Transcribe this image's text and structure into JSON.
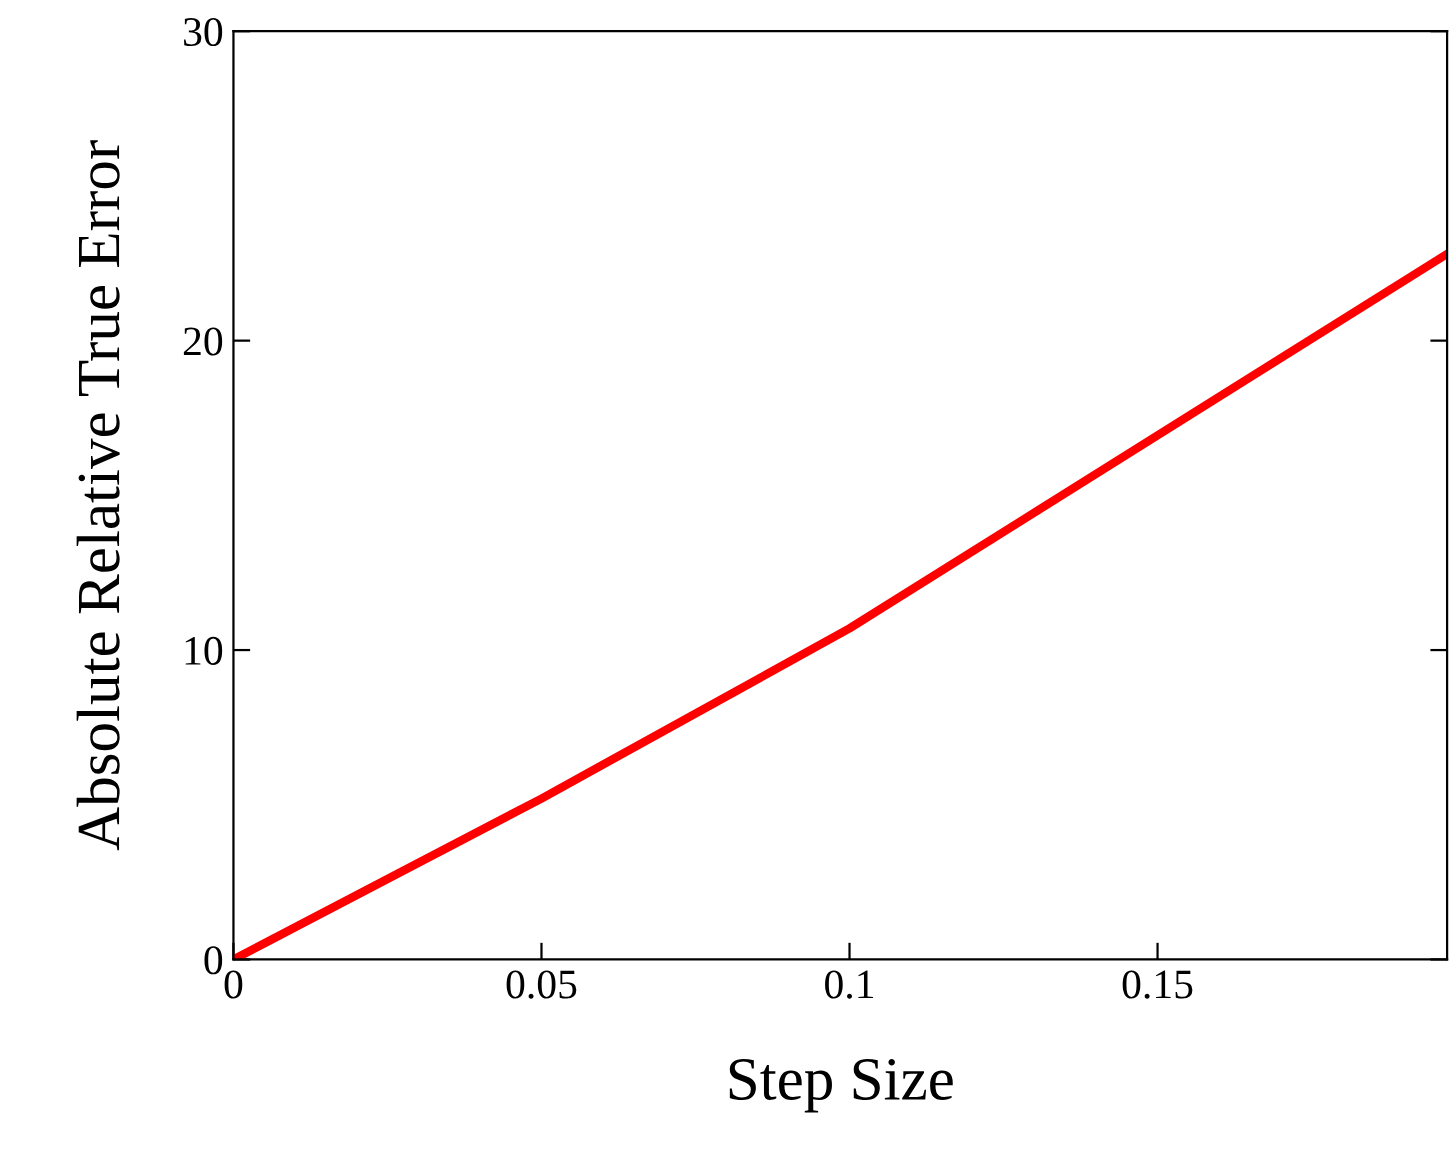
{
  "chart_data": {
    "type": "line",
    "xlabel": "Step Size",
    "ylabel": "Absolute Relative True Error",
    "x": [
      0,
      0.025,
      0.05,
      0.1,
      0.197
    ],
    "series": [
      {
        "color": "#ff0000",
        "values": [
          0,
          2.6,
          5.2,
          10.7,
          22.8
        ]
      }
    ],
    "xlim": [
      0,
      0.197
    ],
    "xticks": [
      0,
      0.05,
      0.1,
      0.15
    ],
    "ylim": [
      0,
      30
    ],
    "yticks": [
      0,
      10,
      20,
      30
    ],
    "grid": false,
    "legend": false,
    "marker": "none",
    "line_style": "solid"
  }
}
